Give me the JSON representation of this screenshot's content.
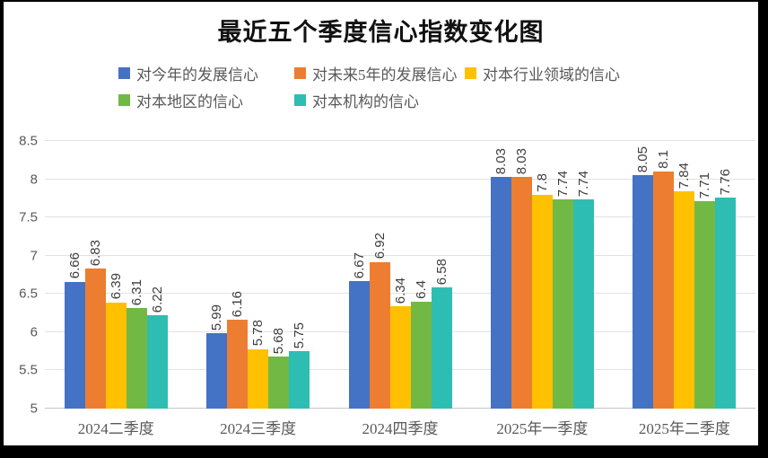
{
  "frame": {
    "border_color": "#000000",
    "background": "#ffffff"
  },
  "chart_data": {
    "type": "bar",
    "title": "最近五个季度信心指数变化图",
    "categories": [
      "2024二季度",
      "2024三季度",
      "2024四季度",
      "2025年一季度",
      "2025年二季度"
    ],
    "series": [
      {
        "name": "对今年的发展信心",
        "color": "#4472C4",
        "values": [
          6.66,
          5.99,
          6.67,
          8.03,
          8.05
        ]
      },
      {
        "name": "对未来5年的发展信心",
        "color": "#ED7D31",
        "values": [
          6.83,
          6.16,
          6.92,
          8.03,
          8.1
        ]
      },
      {
        "name": "对本行业领域的信心",
        "color": "#FFC000",
        "values": [
          6.39,
          5.78,
          6.34,
          7.8,
          7.84
        ]
      },
      {
        "name": "对本地区的信心",
        "color": "#71B944",
        "values": [
          6.31,
          5.68,
          6.4,
          7.74,
          7.71
        ]
      },
      {
        "name": "对本机构的信心",
        "color": "#2EBDB3",
        "values": [
          6.22,
          5.75,
          6.58,
          7.74,
          7.76
        ]
      }
    ],
    "data_labels_rotated": true,
    "y_axis": {
      "min": 5,
      "max": 8.5,
      "step": 0.5,
      "ticks": [
        "5",
        "5.5",
        "6",
        "6.5",
        "7",
        "7.5",
        "8",
        "8.5"
      ]
    },
    "grid": true,
    "legend_position": "top",
    "legend_rows": [
      [
        0,
        1,
        2
      ],
      [
        3,
        4
      ]
    ]
  }
}
